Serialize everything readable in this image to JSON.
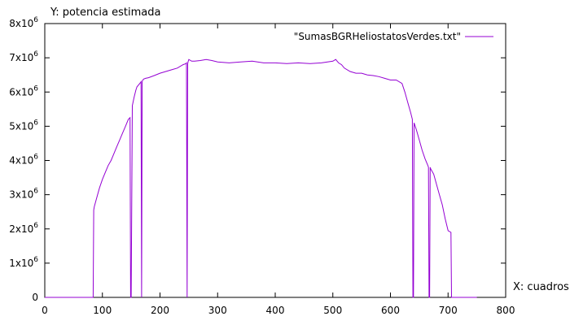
{
  "chart_data": {
    "type": "line",
    "xlabel": "X: cuadros",
    "ylabel": "Y: potencia estimada",
    "xlim": [
      0,
      800
    ],
    "ylim": [
      0,
      8000000
    ],
    "x_ticks": [
      "0",
      "100",
      "200",
      "300",
      "400",
      "500",
      "600",
      "700",
      "800"
    ],
    "y_ticks": [
      {
        "value": 0,
        "mantissa": "0",
        "exp": ""
      },
      {
        "value": 1000000,
        "mantissa": "1x10",
        "exp": "6"
      },
      {
        "value": 2000000,
        "mantissa": "2x10",
        "exp": "6"
      },
      {
        "value": 3000000,
        "mantissa": "3x10",
        "exp": "6"
      },
      {
        "value": 4000000,
        "mantissa": "4x10",
        "exp": "6"
      },
      {
        "value": 5000000,
        "mantissa": "5x10",
        "exp": "6"
      },
      {
        "value": 6000000,
        "mantissa": "6x10",
        "exp": "6"
      },
      {
        "value": 7000000,
        "mantissa": "7x10",
        "exp": "6"
      },
      {
        "value": 8000000,
        "mantissa": "8x10",
        "exp": "6"
      }
    ],
    "grid": false,
    "legend_position": "top-right",
    "series": [
      {
        "name": "\"SumasBGRHeliostatosVerdes.txt\"",
        "color": "#9400D3",
        "x": [
          0,
          84,
          85,
          86,
          90,
          95,
          100,
          105,
          110,
          115,
          120,
          125,
          130,
          135,
          140,
          145,
          148,
          149,
          150,
          152,
          155,
          158,
          160,
          165,
          167,
          168,
          169,
          170,
          172,
          175,
          180,
          190,
          200,
          210,
          220,
          230,
          240,
          245,
          246,
          247,
          248,
          249,
          250,
          255,
          260,
          270,
          280,
          290,
          300,
          320,
          340,
          360,
          380,
          400,
          420,
          440,
          460,
          480,
          500,
          505,
          510,
          515,
          520,
          530,
          540,
          550,
          560,
          570,
          580,
          590,
          600,
          610,
          620,
          625,
          630,
          635,
          638,
          639,
          640,
          641,
          642,
          645,
          650,
          655,
          660,
          665,
          666,
          667,
          668,
          669,
          670,
          675,
          680,
          685,
          690,
          695,
          700,
          705,
          706,
          707,
          710,
          750
        ],
        "values": [
          0,
          0,
          2550000,
          2650000,
          2900000,
          3200000,
          3450000,
          3650000,
          3850000,
          4000000,
          4200000,
          4400000,
          4600000,
          4800000,
          5000000,
          5200000,
          5250000,
          0,
          0,
          5600000,
          5850000,
          6050000,
          6150000,
          6250000,
          6300000,
          0,
          6300000,
          6350000,
          6380000,
          6400000,
          6420000,
          6480000,
          6550000,
          6600000,
          6650000,
          6700000,
          6800000,
          6830000,
          6850000,
          0,
          6830000,
          6900000,
          6950000,
          6900000,
          6900000,
          6920000,
          6950000,
          6920000,
          6880000,
          6850000,
          6880000,
          6900000,
          6850000,
          6850000,
          6830000,
          6850000,
          6830000,
          6850000,
          6900000,
          6950000,
          6850000,
          6800000,
          6700000,
          6600000,
          6550000,
          6550000,
          6500000,
          6480000,
          6450000,
          6400000,
          6350000,
          6350000,
          6250000,
          6000000,
          5700000,
          5400000,
          5200000,
          0,
          0,
          5100000,
          5050000,
          4900000,
          4600000,
          4300000,
          4050000,
          3850000,
          3800000,
          0,
          0,
          3800000,
          3750000,
          3600000,
          3300000,
          3000000,
          2700000,
          2300000,
          1950000,
          1900000,
          0,
          0,
          0,
          0
        ]
      }
    ]
  }
}
